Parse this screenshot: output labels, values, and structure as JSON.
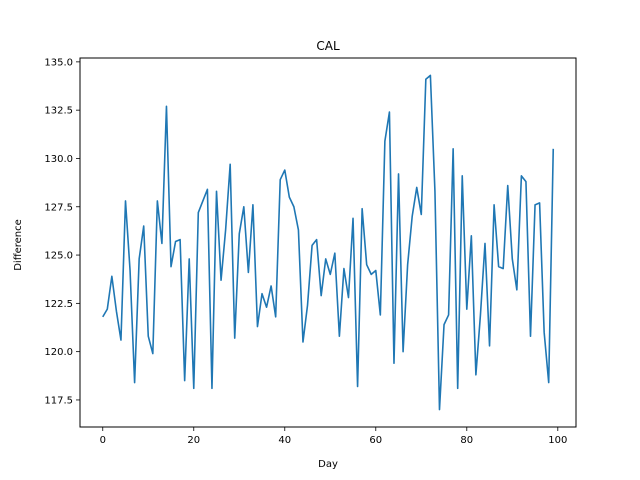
{
  "chart_data": {
    "type": "line",
    "title": "CAL",
    "xlabel": "Day",
    "ylabel": "Difference",
    "xlim": [
      -5,
      104
    ],
    "ylim": [
      116.1,
      135.2
    ],
    "xticks": [
      0,
      20,
      40,
      60,
      80,
      100
    ],
    "yticks": [
      117.5,
      120.0,
      122.5,
      125.0,
      127.5,
      130.0,
      132.5,
      135.0
    ],
    "xtick_labels": [
      "0",
      "20",
      "40",
      "60",
      "80",
      "100"
    ],
    "ytick_labels": [
      "117.5",
      "120.0",
      "122.5",
      "125.0",
      "127.5",
      "130.0",
      "132.5",
      "135.0"
    ],
    "grid": false,
    "legend": "none",
    "series": [
      {
        "color": "#1f77b4",
        "x": [
          0,
          1,
          2,
          3,
          4,
          5,
          6,
          7,
          8,
          9,
          10,
          11,
          12,
          13,
          14,
          15,
          16,
          17,
          18,
          19,
          20,
          21,
          22,
          23,
          24,
          25,
          26,
          27,
          28,
          29,
          30,
          31,
          32,
          33,
          34,
          35,
          36,
          37,
          38,
          39,
          40,
          41,
          42,
          43,
          44,
          45,
          46,
          47,
          48,
          49,
          50,
          51,
          52,
          53,
          54,
          55,
          56,
          57,
          58,
          59,
          60,
          61,
          62,
          63,
          64,
          65,
          66,
          67,
          68,
          69,
          70,
          71,
          72,
          73,
          74,
          75,
          76,
          77,
          78,
          79,
          80,
          81,
          82,
          83,
          84,
          85,
          86,
          87,
          88,
          89,
          90,
          91,
          92,
          93,
          94,
          95,
          96,
          97,
          98,
          99
        ],
        "y": [
          121.8,
          122.2,
          123.9,
          122.1,
          120.6,
          127.8,
          124.2,
          118.4,
          124.8,
          126.5,
          120.8,
          119.9,
          127.8,
          125.6,
          132.7,
          124.4,
          125.7,
          125.8,
          118.5,
          124.8,
          118.1,
          127.2,
          127.8,
          128.4,
          118.1,
          128.3,
          123.7,
          126.3,
          129.7,
          120.7,
          126.1,
          127.5,
          124.1,
          127.6,
          121.3,
          123.0,
          122.3,
          123.4,
          121.8,
          128.9,
          129.4,
          128.0,
          127.5,
          126.3,
          120.5,
          122.4,
          125.5,
          125.8,
          122.9,
          124.8,
          124.0,
          125.1,
          120.8,
          124.3,
          122.8,
          126.9,
          118.2,
          127.4,
          124.5,
          124.0,
          124.2,
          121.9,
          130.9,
          132.4,
          119.4,
          129.2,
          120.0,
          124.5,
          127.0,
          128.5,
          127.1,
          134.1,
          134.3,
          128.3,
          117.0,
          121.4,
          121.9,
          130.5,
          118.1,
          129.1,
          122.2,
          126.0,
          118.8,
          121.9,
          125.6,
          120.3,
          127.6,
          124.4,
          124.3,
          128.6,
          124.8,
          123.2,
          129.1,
          128.8,
          120.8,
          127.6,
          127.7,
          121.0,
          118.4,
          130.5
        ]
      }
    ]
  }
}
